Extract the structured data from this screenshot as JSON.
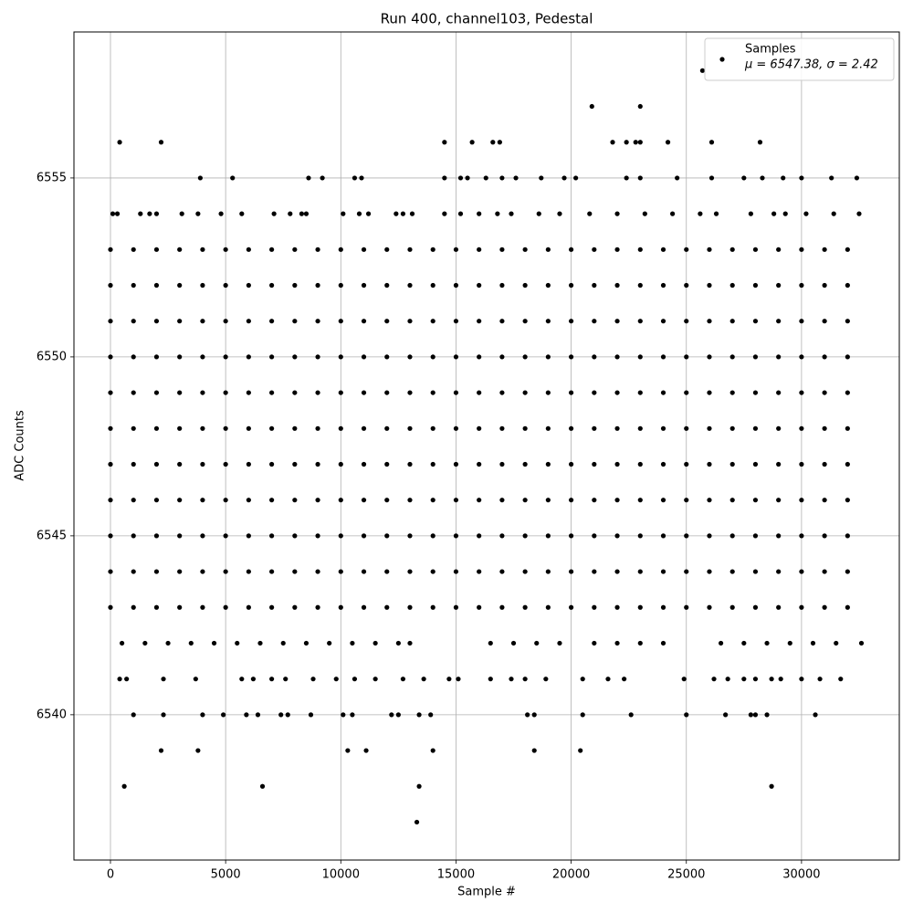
{
  "chart_data": {
    "type": "scatter",
    "title": "Run 400, channel103, Pedestal",
    "x_label": "Sample #",
    "y_label": "ADC Counts",
    "xlim": [
      -1585,
      34245
    ],
    "ylim": [
      6535.94,
      6559.08
    ],
    "xticks": [
      0,
      5000,
      10000,
      15000,
      20000,
      25000,
      30000
    ],
    "yticks": [
      6540,
      6545,
      6550,
      6555
    ],
    "grid": true,
    "legend": "upper right",
    "legend_note": "μ = 6547.38, σ = 2.42",
    "series": [
      {
        "name": "Samples",
        "color": "#000000",
        "x": [
          0,
          1000,
          2000,
          3000,
          4000,
          5000,
          6000,
          7000,
          8000,
          9000,
          10000,
          11000,
          12000,
          13000,
          14000,
          15000,
          16000,
          17000,
          18000,
          19000,
          20000,
          21000,
          22000,
          23000,
          24000,
          25000,
          26000,
          27000,
          28000,
          29000,
          30000,
          31000,
          32000,
          0,
          1000,
          2000,
          3000,
          4000,
          5000,
          6000,
          7000,
          8000,
          9000,
          10000,
          11000,
          12000,
          13000,
          14000,
          15000,
          16000,
          17000,
          18000,
          19000,
          20000,
          21000,
          22000,
          23000,
          24000,
          25000,
          26000,
          27000,
          28000,
          29000,
          30000,
          31000,
          32000,
          0,
          1000,
          2000,
          3000,
          4000,
          5000,
          6000,
          7000,
          8000,
          9000,
          10000,
          11000,
          12000,
          13000,
          14000,
          15000,
          16000,
          17000,
          18000,
          19000,
          20000,
          21000,
          22000,
          23000,
          24000,
          25000,
          26000,
          27000,
          28000,
          29000,
          30000,
          31000,
          32000,
          0,
          1000,
          2000,
          3000,
          4000,
          5000,
          6000,
          7000,
          8000,
          9000,
          10000,
          11000,
          12000,
          13000,
          14000,
          15000,
          16000,
          17000,
          18000,
          19000,
          20000,
          21000,
          22000,
          23000,
          24000,
          25000,
          26000,
          27000,
          28000,
          29000,
          30000,
          31000,
          32000,
          0,
          1000,
          2000,
          3000,
          4000,
          5000,
          6000,
          7000,
          8000,
          9000,
          10000,
          11000,
          12000,
          13000,
          14000,
          15000,
          16000,
          17000,
          18000,
          19000,
          20000,
          21000,
          22000,
          23000,
          24000,
          25000,
          26000,
          27000,
          28000,
          29000,
          30000,
          31000,
          32000,
          0,
          1000,
          2000,
          3000,
          4000,
          5000,
          6000,
          7000,
          8000,
          9000,
          10000,
          11000,
          12000,
          13000,
          14000,
          15000,
          16000,
          17000,
          18000,
          19000,
          20000,
          21000,
          22000,
          23000,
          24000,
          25000,
          26000,
          27000,
          28000,
          29000,
          30000,
          31000,
          32000,
          0,
          1000,
          2000,
          3000,
          4000,
          5000,
          6000,
          7000,
          8000,
          9000,
          10000,
          11000,
          12000,
          13000,
          14000,
          15000,
          16000,
          17000,
          18000,
          19000,
          20000,
          21000,
          22000,
          23000,
          24000,
          25000,
          26000,
          27000,
          28000,
          29000,
          30000,
          31000,
          32000,
          0,
          1000,
          2000,
          3000,
          4000,
          5000,
          6000,
          7000,
          8000,
          9000,
          10000,
          11000,
          12000,
          13000,
          14000,
          15000,
          16000,
          17000,
          18000,
          19000,
          20000,
          21000,
          22000,
          23000,
          24000,
          25000,
          26000,
          27000,
          28000,
          29000,
          30000,
          31000,
          32000,
          0,
          1000,
          2000,
          3000,
          4000,
          5000,
          6000,
          7000,
          8000,
          9000,
          10000,
          11000,
          12000,
          13000,
          14000,
          15000,
          16000,
          17000,
          18000,
          19000,
          20000,
          21000,
          22000,
          23000,
          24000,
          25000,
          26000,
          27000,
          28000,
          29000,
          30000,
          31000,
          32000,
          0,
          1000,
          2000,
          3000,
          4000,
          5000,
          6000,
          7000,
          8000,
          9000,
          10000,
          11000,
          12000,
          13000,
          14000,
          15000,
          16000,
          17000,
          18000,
          19000,
          20000,
          21000,
          22000,
          23000,
          24000,
          25000,
          26000,
          27000,
          28000,
          29000,
          30000,
          31000,
          32000,
          0,
          1000,
          2000,
          3000,
          4000,
          5000,
          6000,
          7000,
          8000,
          9000,
          10000,
          11000,
          12000,
          13000,
          14000,
          15000,
          16000,
          17000,
          18000,
          19000,
          20000,
          21000,
          22000,
          23000,
          24000,
          25000,
          26000,
          27000,
          28000,
          29000,
          30000,
          31000,
          32000,
          500,
          1500,
          2500,
          3500,
          4500,
          5500,
          6500,
          7500,
          8500,
          9500,
          10500,
          11500,
          12500,
          13000,
          16500,
          17500,
          18500,
          19500,
          21000,
          22000,
          23000,
          24000,
          26500,
          27500,
          28500,
          29500,
          30500,
          31500,
          32600,
          400,
          700,
          2300,
          3700,
          5700,
          6200,
          7000,
          7600,
          8800,
          9800,
          10600,
          11500,
          12700,
          13600,
          14700,
          15100,
          16500,
          17400,
          18000,
          18900,
          20500,
          21600,
          22300,
          24900,
          26200,
          26800,
          27500,
          28000,
          28700,
          29100,
          30000,
          30800,
          31700,
          1000,
          2300,
          4000,
          4900,
          5900,
          6400,
          7400,
          7700,
          8700,
          10100,
          10500,
          12200,
          12500,
          13400,
          13900,
          18100,
          18400,
          20500,
          22600,
          25000,
          26700,
          27800,
          28000,
          28500,
          30600,
          2200,
          3800,
          10300,
          11100,
          14000,
          18400,
          20400,
          600,
          6600,
          13400,
          28700,
          13300,
          100,
          300,
          1300,
          1700,
          2000,
          3100,
          3800,
          4800,
          5700,
          7100,
          7800,
          8300,
          8500,
          10100,
          10800,
          11200,
          12400,
          12700,
          13100,
          14500,
          15200,
          16000,
          16800,
          17400,
          18600,
          19500,
          20800,
          22000,
          23200,
          24400,
          25600,
          26300,
          27800,
          28800,
          29300,
          30200,
          31400,
          32500,
          3900,
          5300,
          8600,
          9200,
          10600,
          10900,
          14500,
          15200,
          15500,
          16300,
          17000,
          17600,
          18700,
          19700,
          20200,
          22400,
          23000,
          24600,
          26100,
          27500,
          28300,
          29200,
          30000,
          31300,
          32400,
          400,
          2200,
          14500,
          15700,
          16600,
          16900,
          21800,
          22400,
          22800,
          23000,
          24200,
          26100,
          28200,
          20900,
          23000,
          25700
        ],
        "values": [
          6543,
          6543,
          6543,
          6543,
          6543,
          6543,
          6543,
          6543,
          6543,
          6543,
          6543,
          6543,
          6543,
          6543,
          6543,
          6543,
          6543,
          6543,
          6543,
          6543,
          6543,
          6543,
          6543,
          6543,
          6543,
          6543,
          6543,
          6543,
          6543,
          6543,
          6543,
          6543,
          6543,
          6544,
          6544,
          6544,
          6544,
          6544,
          6544,
          6544,
          6544,
          6544,
          6544,
          6544,
          6544,
          6544,
          6544,
          6544,
          6544,
          6544,
          6544,
          6544,
          6544,
          6544,
          6544,
          6544,
          6544,
          6544,
          6544,
          6544,
          6544,
          6544,
          6544,
          6544,
          6544,
          6544,
          6545,
          6545,
          6545,
          6545,
          6545,
          6545,
          6545,
          6545,
          6545,
          6545,
          6545,
          6545,
          6545,
          6545,
          6545,
          6545,
          6545,
          6545,
          6545,
          6545,
          6545,
          6545,
          6545,
          6545,
          6545,
          6545,
          6545,
          6545,
          6545,
          6545,
          6545,
          6545,
          6545,
          6546,
          6546,
          6546,
          6546,
          6546,
          6546,
          6546,
          6546,
          6546,
          6546,
          6546,
          6546,
          6546,
          6546,
          6546,
          6546,
          6546,
          6546,
          6546,
          6546,
          6546,
          6546,
          6546,
          6546,
          6546,
          6546,
          6546,
          6546,
          6546,
          6546,
          6546,
          6546,
          6546,
          6547,
          6547,
          6547,
          6547,
          6547,
          6547,
          6547,
          6547,
          6547,
          6547,
          6547,
          6547,
          6547,
          6547,
          6547,
          6547,
          6547,
          6547,
          6547,
          6547,
          6547,
          6547,
          6547,
          6547,
          6547,
          6547,
          6547,
          6547,
          6547,
          6547,
          6547,
          6547,
          6547,
          6548,
          6548,
          6548,
          6548,
          6548,
          6548,
          6548,
          6548,
          6548,
          6548,
          6548,
          6548,
          6548,
          6548,
          6548,
          6548,
          6548,
          6548,
          6548,
          6548,
          6548,
          6548,
          6548,
          6548,
          6548,
          6548,
          6548,
          6548,
          6548,
          6548,
          6548,
          6548,
          6548,
          6549,
          6549,
          6549,
          6549,
          6549,
          6549,
          6549,
          6549,
          6549,
          6549,
          6549,
          6549,
          6549,
          6549,
          6549,
          6549,
          6549,
          6549,
          6549,
          6549,
          6549,
          6549,
          6549,
          6549,
          6549,
          6549,
          6549,
          6549,
          6549,
          6549,
          6549,
          6549,
          6549,
          6550,
          6550,
          6550,
          6550,
          6550,
          6550,
          6550,
          6550,
          6550,
          6550,
          6550,
          6550,
          6550,
          6550,
          6550,
          6550,
          6550,
          6550,
          6550,
          6550,
          6550,
          6550,
          6550,
          6550,
          6550,
          6550,
          6550,
          6550,
          6550,
          6550,
          6550,
          6550,
          6550,
          6551,
          6551,
          6551,
          6551,
          6551,
          6551,
          6551,
          6551,
          6551,
          6551,
          6551,
          6551,
          6551,
          6551,
          6551,
          6551,
          6551,
          6551,
          6551,
          6551,
          6551,
          6551,
          6551,
          6551,
          6551,
          6551,
          6551,
          6551,
          6551,
          6551,
          6551,
          6551,
          6551,
          6552,
          6552,
          6552,
          6552,
          6552,
          6552,
          6552,
          6552,
          6552,
          6552,
          6552,
          6552,
          6552,
          6552,
          6552,
          6552,
          6552,
          6552,
          6552,
          6552,
          6552,
          6552,
          6552,
          6552,
          6552,
          6552,
          6552,
          6552,
          6552,
          6552,
          6552,
          6552,
          6552,
          6553,
          6553,
          6553,
          6553,
          6553,
          6553,
          6553,
          6553,
          6553,
          6553,
          6553,
          6553,
          6553,
          6553,
          6553,
          6553,
          6553,
          6553,
          6553,
          6553,
          6553,
          6553,
          6553,
          6553,
          6553,
          6553,
          6553,
          6553,
          6553,
          6553,
          6553,
          6553,
          6553,
          6542,
          6542,
          6542,
          6542,
          6542,
          6542,
          6542,
          6542,
          6542,
          6542,
          6542,
          6542,
          6542,
          6542,
          6542,
          6542,
          6542,
          6542,
          6542,
          6542,
          6542,
          6542,
          6542,
          6542,
          6542,
          6542,
          6542,
          6542,
          6542,
          6541,
          6541,
          6541,
          6541,
          6541,
          6541,
          6541,
          6541,
          6541,
          6541,
          6541,
          6541,
          6541,
          6541,
          6541,
          6541,
          6541,
          6541,
          6541,
          6541,
          6541,
          6541,
          6541,
          6541,
          6541,
          6541,
          6541,
          6541,
          6541,
          6541,
          6541,
          6541,
          6541,
          6540,
          6540,
          6540,
          6540,
          6540,
          6540,
          6540,
          6540,
          6540,
          6540,
          6540,
          6540,
          6540,
          6540,
          6540,
          6540,
          6540,
          6540,
          6540,
          6540,
          6540,
          6540,
          6540,
          6540,
          6540,
          6539,
          6539,
          6539,
          6539,
          6539,
          6539,
          6539,
          6538,
          6538,
          6538,
          6538,
          6537,
          6554,
          6554,
          6554,
          6554,
          6554,
          6554,
          6554,
          6554,
          6554,
          6554,
          6554,
          6554,
          6554,
          6554,
          6554,
          6554,
          6554,
          6554,
          6554,
          6554,
          6554,
          6554,
          6554,
          6554,
          6554,
          6554,
          6554,
          6554,
          6554,
          6554,
          6554,
          6554,
          6554,
          6554,
          6554,
          6554,
          6554,
          6554,
          6555,
          6555,
          6555,
          6555,
          6555,
          6555,
          6555,
          6555,
          6555,
          6555,
          6555,
          6555,
          6555,
          6555,
          6555,
          6555,
          6555,
          6555,
          6555,
          6555,
          6555,
          6555,
          6555,
          6555,
          6555,
          6556,
          6556,
          6556,
          6556,
          6556,
          6556,
          6556,
          6556,
          6556,
          6556,
          6556,
          6556,
          6556,
          6557,
          6557,
          6558
        ]
      }
    ]
  }
}
